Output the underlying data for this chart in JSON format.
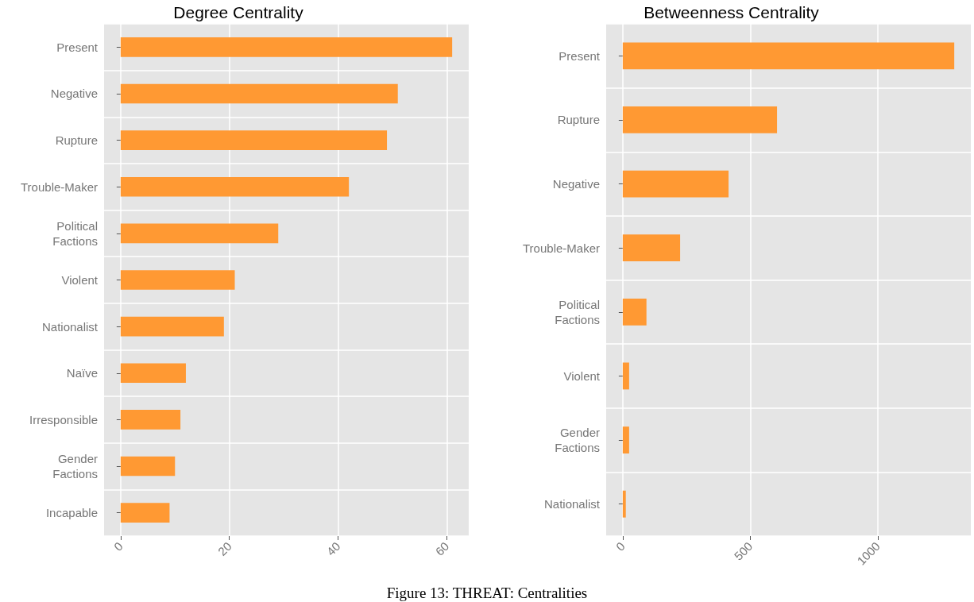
{
  "chart_data": [
    {
      "type": "bar",
      "orientation": "horizontal",
      "title": "Degree Centrality",
      "categories": [
        "Present",
        "Negative",
        "Rupture",
        "Trouble-Maker",
        "Political\nFactions",
        "Violent",
        "Nationalist",
        "Naïve",
        "Irresponsible",
        "Gender\nFactions",
        "Incapable"
      ],
      "values": [
        61,
        51,
        49,
        42,
        29,
        21,
        19,
        12,
        11,
        10,
        9
      ],
      "color": "#ff9933",
      "xlim": [
        -3.05,
        64.05
      ],
      "xticks": [
        0,
        20,
        40,
        60
      ],
      "grid": true,
      "annotations": [
        "Figure 13: THREAT: Centralities"
      ]
    },
    {
      "type": "bar",
      "orientation": "horizontal",
      "title": "Betweenness Centrality",
      "categories": [
        "Present",
        "Rupture",
        "Negative",
        "Trouble-Maker",
        "Political\nFactions",
        "Violent",
        "Gender\nFactions",
        "Nationalist"
      ],
      "values": [
        1300,
        605,
        415,
        225,
        93,
        25,
        25,
        12
      ],
      "color": "#ff9933",
      "xlim": [
        -65,
        1365
      ],
      "xticks": [
        0,
        500,
        1000
      ],
      "grid": true
    }
  ]
}
